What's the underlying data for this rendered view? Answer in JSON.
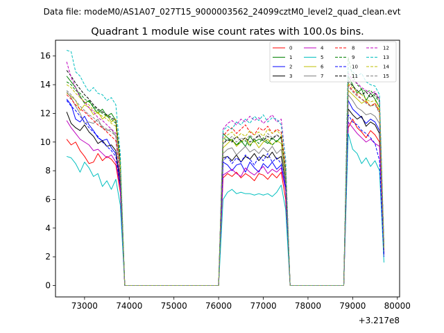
{
  "figure": {
    "suptitle": "Data file: modeM0/AS1A07_027T15_9000003562_24099cztM0_level2_quad_clean.evt"
  },
  "chart_data": {
    "type": "line",
    "title": "Quadrant 1 module wise count rates with 100.0s bins.",
    "xlabel": "",
    "ylabel": "",
    "x_offset_label": "+3.217e8",
    "xlim": [
      72350,
      80050
    ],
    "ylim": [
      -0.8,
      17.1
    ],
    "xticks": [
      73000,
      74000,
      75000,
      76000,
      77000,
      78000,
      79000,
      80000
    ],
    "yticks": [
      0,
      2,
      4,
      6,
      8,
      10,
      12,
      14,
      16
    ],
    "grid": false,
    "legend_placement": "top-right",
    "legend_columns": 4,
    "x": [
      72600,
      72700,
      72800,
      72900,
      73000,
      73100,
      73200,
      73300,
      73400,
      73500,
      73600,
      73700,
      73800,
      73900,
      74000,
      74500,
      75000,
      75500,
      76000,
      76100,
      76200,
      76300,
      76400,
      76500,
      76600,
      76700,
      76800,
      76900,
      77000,
      77100,
      77200,
      77300,
      77400,
      77500,
      77600,
      78000,
      78500,
      78800,
      78900,
      79000,
      79100,
      79200,
      79300,
      79400,
      79500,
      79600,
      79700
    ],
    "series": [
      {
        "name": "0",
        "color": "#ff0000",
        "dash": "solid",
        "values": [
          10.2,
          9.8,
          10.0,
          9.4,
          9.0,
          8.5,
          8.6,
          9.2,
          8.7,
          9.0,
          8.8,
          8.4,
          6.5,
          0,
          0,
          0,
          0,
          0,
          0,
          7.5,
          7.8,
          7.6,
          7.9,
          7.5,
          7.8,
          7.6,
          7.3,
          7.8,
          7.7,
          7.4,
          7.8,
          7.5,
          7.9,
          6.0,
          0,
          0,
          0,
          0,
          11.0,
          11.6,
          11.0,
          10.7,
          10.3,
          10.8,
          10.5,
          10.0,
          2.4
        ]
      },
      {
        "name": "1",
        "color": "#008000",
        "dash": "solid",
        "values": [
          14.6,
          14.2,
          13.8,
          13.2,
          12.7,
          12.9,
          12.4,
          12.0,
          12.3,
          11.8,
          12.0,
          11.5,
          8.5,
          0,
          0,
          0,
          0,
          0,
          0,
          10.6,
          10.3,
          10.1,
          9.8,
          10.1,
          9.7,
          10.4,
          10.0,
          10.2,
          10.1,
          9.9,
          10.3,
          10.0,
          10.4,
          8.0,
          0,
          0,
          0,
          0,
          14.6,
          14.0,
          13.4,
          13.7,
          12.9,
          13.4,
          13.0,
          12.4,
          2.6
        ]
      },
      {
        "name": "2",
        "color": "#0000ff",
        "dash": "solid",
        "values": [
          13.0,
          12.6,
          11.6,
          11.4,
          11.8,
          11.2,
          10.8,
          10.3,
          10.1,
          10.2,
          9.6,
          9.2,
          7.5,
          0,
          0,
          0,
          0,
          0,
          0,
          8.6,
          8.4,
          8.0,
          8.4,
          8.5,
          7.9,
          8.6,
          8.2,
          7.9,
          8.5,
          8.2,
          8.6,
          8.1,
          8.4,
          6.8,
          0,
          0,
          0,
          0,
          12.9,
          12.3,
          12.0,
          11.7,
          11.3,
          11.6,
          11.4,
          10.8,
          2.3
        ]
      },
      {
        "name": "3",
        "color": "#000000",
        "dash": "solid",
        "values": [
          12.1,
          11.3,
          11.0,
          10.8,
          11.2,
          10.7,
          10.4,
          9.9,
          10.1,
          9.7,
          9.8,
          9.4,
          7.0,
          0,
          0,
          0,
          0,
          0,
          0,
          8.9,
          9.0,
          8.7,
          9.1,
          8.6,
          9.0,
          8.8,
          9.2,
          8.7,
          9.1,
          8.9,
          9.3,
          8.8,
          9.0,
          7.2,
          0,
          0,
          0,
          0,
          12.3,
          11.9,
          11.6,
          11.8,
          11.1,
          11.4,
          11.2,
          10.6,
          2.2
        ]
      },
      {
        "name": "4",
        "color": "#bf00bf",
        "dash": "solid",
        "values": [
          11.5,
          11.0,
          10.6,
          10.2,
          10.0,
          9.8,
          9.4,
          9.5,
          9.2,
          8.9,
          9.1,
          8.6,
          6.8,
          0,
          0,
          0,
          0,
          0,
          0,
          7.7,
          7.9,
          8.1,
          7.8,
          7.6,
          8.2,
          7.9,
          7.7,
          8.0,
          8.3,
          7.8,
          8.1,
          7.9,
          8.2,
          6.6,
          0,
          0,
          0,
          0,
          11.4,
          11.0,
          10.6,
          10.3,
          10.0,
          10.2,
          9.9,
          9.7,
          2.1
        ]
      },
      {
        "name": "5",
        "color": "#00bfbf",
        "dash": "solid",
        "values": [
          9.0,
          8.9,
          8.5,
          7.9,
          8.6,
          8.2,
          7.6,
          7.8,
          6.9,
          7.3,
          6.7,
          7.4,
          5.6,
          0,
          0,
          0,
          0,
          0,
          0,
          6.0,
          6.5,
          6.7,
          6.4,
          6.5,
          6.4,
          6.4,
          6.3,
          6.4,
          6.3,
          6.4,
          6.2,
          6.5,
          7.0,
          5.3,
          0,
          0,
          0,
          0,
          10.6,
          9.5,
          9.2,
          8.5,
          8.9,
          8.3,
          8.7,
          8.0,
          1.6
        ]
      },
      {
        "name": "6",
        "color": "#bfbf00",
        "dash": "solid",
        "values": [
          13.4,
          13.2,
          12.9,
          12.2,
          12.6,
          12.4,
          11.9,
          12.1,
          11.6,
          11.9,
          11.4,
          11.6,
          8.6,
          0,
          0,
          0,
          0,
          0,
          0,
          9.6,
          9.9,
          10.2,
          9.7,
          10.0,
          10.3,
          9.8,
          10.1,
          9.6,
          10.0,
          10.2,
          9.8,
          10.1,
          9.9,
          7.6,
          0,
          0,
          0,
          0,
          13.6,
          13.3,
          13.0,
          12.7,
          12.9,
          12.5,
          12.7,
          12.2,
          2.5
        ]
      },
      {
        "name": "7",
        "color": "#808080",
        "dash": "solid",
        "values": [
          13.5,
          13.1,
          12.5,
          12.0,
          11.3,
          11.4,
          11.3,
          11.6,
          11.0,
          10.8,
          10.9,
          10.4,
          7.8,
          0,
          0,
          0,
          0,
          0,
          0,
          9.2,
          9.5,
          9.6,
          9.1,
          9.4,
          9.7,
          9.3,
          9.5,
          9.2,
          9.6,
          9.3,
          9.7,
          9.2,
          9.5,
          7.3,
          0,
          0,
          0,
          0,
          13.3,
          12.9,
          12.4,
          12.2,
          11.9,
          12.0,
          11.8,
          11.3,
          2.4
        ]
      },
      {
        "name": "8",
        "color": "#ff0000",
        "dash": "dashed",
        "values": [
          13.3,
          13.0,
          12.6,
          12.3,
          12.1,
          11.8,
          11.5,
          11.2,
          11.0,
          10.7,
          10.4,
          10.1,
          7.6,
          0,
          0,
          0,
          0,
          0,
          0,
          10.4,
          10.8,
          11.0,
          10.6,
          10.9,
          11.2,
          10.7,
          10.5,
          11.0,
          10.8,
          11.1,
          10.6,
          10.9,
          10.7,
          8.2,
          0,
          0,
          0,
          0,
          14.0,
          13.6,
          13.3,
          13.0,
          12.8,
          12.5,
          12.7,
          12.1,
          2.5
        ]
      },
      {
        "name": "9",
        "color": "#008000",
        "dash": "dashed",
        "values": [
          14.2,
          14.0,
          13.6,
          13.4,
          13.0,
          12.8,
          12.5,
          12.2,
          12.0,
          11.8,
          11.6,
          11.3,
          8.4,
          0,
          0,
          0,
          0,
          0,
          0,
          10.3,
          10.1,
          10.2,
          9.8,
          10.0,
          10.1,
          9.7,
          10.2,
          9.9,
          10.3,
          10.0,
          9.8,
          10.1,
          10.3,
          7.9,
          0,
          0,
          0,
          0,
          15.9,
          14.6,
          14.0,
          13.7,
          13.5,
          13.6,
          13.2,
          12.8,
          2.6
        ]
      },
      {
        "name": "10",
        "color": "#0000ff",
        "dash": "dashed",
        "values": [
          12.9,
          12.5,
          12.2,
          11.8,
          11.4,
          11.0,
          10.7,
          10.4,
          10.0,
          9.7,
          9.4,
          9.0,
          6.9,
          0,
          0,
          0,
          0,
          0,
          0,
          8.7,
          9.0,
          8.5,
          8.9,
          8.6,
          9.1,
          8.8,
          8.4,
          9.0,
          8.7,
          9.2,
          8.6,
          8.9,
          8.5,
          6.9,
          0,
          0,
          0,
          0,
          11.9,
          11.4,
          11.2,
          10.8,
          10.6,
          10.3,
          9.9,
          8.7,
          2.0
        ]
      },
      {
        "name": "11",
        "color": "#000000",
        "dash": "dashed",
        "values": [
          15.0,
          14.6,
          14.1,
          13.7,
          13.3,
          13.0,
          12.6,
          12.3,
          12.1,
          11.9,
          11.7,
          11.5,
          8.7,
          0,
          0,
          0,
          0,
          0,
          0,
          9.9,
          10.2,
          10.0,
          10.4,
          10.1,
          10.3,
          10.0,
          10.2,
          10.5,
          10.1,
          10.4,
          10.2,
          10.5,
          10.3,
          8.0,
          0,
          0,
          0,
          0,
          14.3,
          13.9,
          13.6,
          13.3,
          13.5,
          13.1,
          13.4,
          12.9,
          2.7
        ]
      },
      {
        "name": "12",
        "color": "#bf00bf",
        "dash": "dashed",
        "values": [
          15.6,
          14.5,
          13.8,
          13.1,
          12.8,
          12.4,
          12.1,
          11.7,
          11.5,
          11.2,
          10.9,
          10.6,
          7.9,
          0,
          0,
          0,
          0,
          0,
          0,
          10.9,
          11.3,
          11.5,
          11.2,
          11.6,
          11.4,
          11.8,
          11.5,
          11.7,
          11.3,
          11.6,
          11.9,
          11.4,
          11.6,
          8.7,
          0,
          0,
          0,
          0,
          14.8,
          14.3,
          14.1,
          13.8,
          13.6,
          13.4,
          13.5,
          13.0,
          2.8
        ]
      },
      {
        "name": "13",
        "color": "#00bfbf",
        "dash": "dashed",
        "values": [
          16.4,
          16.3,
          14.9,
          14.6,
          14.0,
          13.5,
          13.8,
          13.4,
          13.3,
          12.9,
          13.1,
          12.6,
          9.2,
          0,
          0,
          0,
          0,
          0,
          0,
          10.8,
          11.1,
          10.9,
          11.4,
          11.2,
          11.6,
          11.3,
          11.8,
          11.5,
          11.9,
          11.4,
          11.7,
          11.6,
          11.2,
          8.8,
          0,
          0,
          0,
          0,
          15.2,
          14.9,
          14.6,
          14.8,
          14.2,
          14.0,
          13.9,
          13.3,
          2.9
        ]
      },
      {
        "name": "14",
        "color": "#bfbf00",
        "dash": "dashed",
        "values": [
          14.0,
          13.8,
          13.4,
          13.1,
          12.8,
          12.6,
          12.2,
          12.0,
          11.8,
          11.6,
          11.3,
          11.1,
          8.3,
          0,
          0,
          0,
          0,
          0,
          0,
          10.2,
          10.5,
          10.7,
          10.3,
          10.6,
          10.4,
          10.8,
          10.5,
          10.7,
          10.4,
          10.9,
          10.6,
          10.8,
          10.5,
          8.1,
          0,
          0,
          0,
          0,
          14.1,
          13.8,
          13.5,
          13.3,
          13.0,
          12.8,
          12.9,
          12.4,
          2.6
        ]
      },
      {
        "name": "15",
        "color": "#808080",
        "dash": "dashed",
        "values": [
          13.6,
          13.3,
          12.9,
          12.5,
          12.2,
          11.9,
          11.7,
          11.4,
          11.1,
          10.9,
          10.7,
          10.4,
          7.8,
          0,
          0,
          0,
          0,
          0,
          0,
          9.9,
          10.1,
          10.4,
          10.0,
          10.3,
          10.1,
          10.5,
          10.2,
          10.4,
          10.1,
          10.6,
          10.3,
          10.5,
          10.2,
          7.9,
          0,
          0,
          0,
          0,
          13.9,
          13.5,
          13.2,
          13.0,
          12.7,
          12.5,
          12.6,
          12.0,
          2.5
        ]
      }
    ]
  }
}
